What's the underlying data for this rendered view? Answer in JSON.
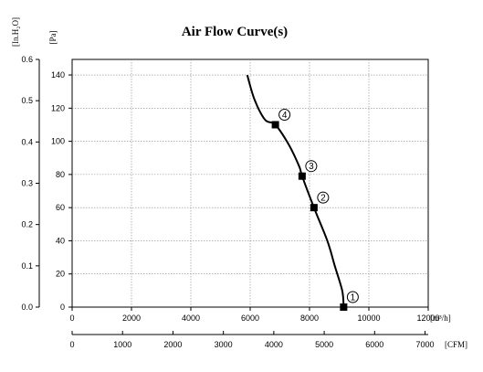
{
  "chart_data": {
    "type": "line",
    "title": "Air Flow Curve(s)",
    "x_axis_primary": {
      "unit": "[m³/h]",
      "range": [
        0,
        12000
      ],
      "ticks": [
        0,
        2000,
        4000,
        6000,
        8000,
        10000,
        12000
      ]
    },
    "x_axis_secondary": {
      "unit": "[CFM]",
      "range": [
        0,
        7063
      ],
      "ticks": [
        0,
        1000,
        2000,
        3000,
        4000,
        5000,
        6000,
        7000
      ]
    },
    "y_axis_primary": {
      "unit": "[Pa]",
      "range": [
        0,
        149.4
      ],
      "ticks": [
        0,
        20,
        40,
        60,
        80,
        100,
        120,
        140
      ]
    },
    "y_axis_secondary": {
      "unit": "[In.H₂O]",
      "range": [
        0,
        0.6
      ],
      "ticks": [
        "0.0",
        "0.1",
        "0.2",
        "0.3",
        "0.4",
        "0.5",
        "0.6"
      ]
    },
    "grid": true,
    "series": [
      {
        "curve_points": [
          {
            "x": 5900,
            "y": 140
          },
          {
            "x": 6150,
            "y": 125
          },
          {
            "x": 6500,
            "y": 113
          },
          {
            "x": 6850,
            "y": 110
          },
          {
            "x": 7300,
            "y": 98
          },
          {
            "x": 7650,
            "y": 85
          },
          {
            "x": 7750,
            "y": 79
          },
          {
            "x": 8150,
            "y": 60
          },
          {
            "x": 8600,
            "y": 40
          },
          {
            "x": 8850,
            "y": 25
          },
          {
            "x": 9100,
            "y": 10
          },
          {
            "x": 9150,
            "y": 0
          }
        ],
        "operating_points": [
          {
            "label": "1",
            "x": 9150,
            "y": 0
          },
          {
            "label": "2",
            "x": 8150,
            "y": 60
          },
          {
            "label": "3",
            "x": 7750,
            "y": 79
          },
          {
            "label": "4",
            "x": 6850,
            "y": 110
          }
        ]
      }
    ]
  }
}
